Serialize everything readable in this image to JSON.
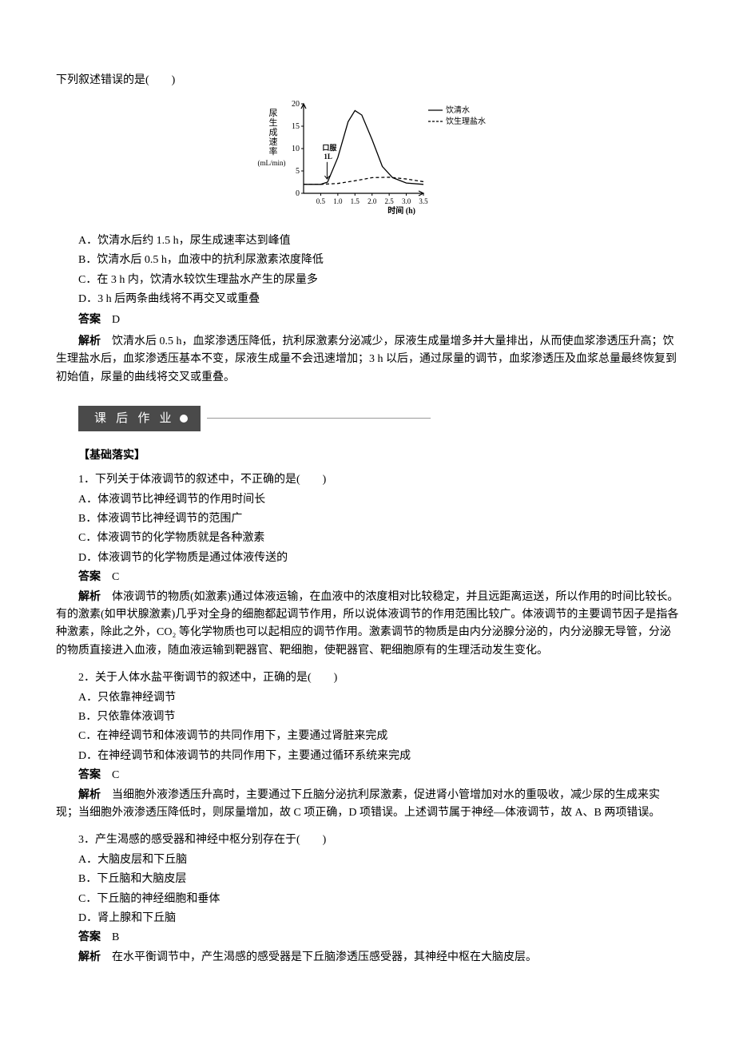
{
  "top": {
    "stem": "下列叙述错误的是(　　)",
    "options": {
      "A": "A．饮清水后约 1.5 h，尿生成速率达到峰值",
      "B": "B．饮清水后 0.5 h，血液中的抗利尿激素浓度降低",
      "C": "C．在 3 h 内，饮清水较饮生理盐水产生的尿量多",
      "D": "D．3 h 后两条曲线将不再交叉或重叠"
    },
    "answer_label": "答案",
    "answer_value": "　D",
    "analysis_label": "解析",
    "analysis_text": "　饮清水后 0.5 h，血浆渗透压降低，抗利尿激素分泌减少，尿液生成量增多并大量排出，从而使血浆渗透压升高；饮生理盐水后，血浆渗透压基本不变，尿液生成量不会迅速增加；3 h 以后，通过尿量的调节，血浆渗透压及血浆总量最终恢复到初始值，尿量的曲线将交叉或重叠。"
  },
  "chart": {
    "type": "line",
    "y_label_lines": [
      "尿",
      "生",
      "成",
      "速",
      "率"
    ],
    "y_unit": "(mL/min)",
    "x_label": "时间 (h)",
    "y_ticks": [
      "0",
      "5",
      "10",
      "15",
      "20"
    ],
    "x_ticks": [
      "0.5",
      "1.0",
      "1.5",
      "2.0",
      "2.5",
      "3.0",
      "3.5"
    ],
    "legend": {
      "water": "饮清水",
      "saline": "饮生理盐水"
    },
    "annot_l1": "口服",
    "annot_l2": "1L",
    "series": {
      "water": {
        "color": "#000000",
        "dash": "none",
        "points": [
          [
            0,
            2.0
          ],
          [
            0.5,
            2.0
          ],
          [
            0.7,
            2.5
          ],
          [
            1.0,
            8.0
          ],
          [
            1.3,
            16.0
          ],
          [
            1.5,
            18.5
          ],
          [
            1.7,
            17.5
          ],
          [
            2.0,
            12.0
          ],
          [
            2.3,
            6.0
          ],
          [
            2.6,
            3.5
          ],
          [
            3.0,
            2.3
          ],
          [
            3.5,
            2.0
          ]
        ]
      },
      "saline": {
        "color": "#000000",
        "dash": "4,3",
        "points": [
          [
            0,
            2.0
          ],
          [
            0.5,
            2.0
          ],
          [
            1.0,
            2.2
          ],
          [
            1.5,
            2.8
          ],
          [
            2.0,
            3.5
          ],
          [
            2.5,
            3.6
          ],
          [
            3.0,
            3.2
          ],
          [
            3.5,
            2.6
          ]
        ]
      }
    },
    "xlim": [
      0,
      3.5
    ],
    "ylim": [
      0,
      20
    ],
    "axis_color": "#000000",
    "background": "#ffffff"
  },
  "section": {
    "badge": "课 后 作 业"
  },
  "basics": {
    "header": "【基础落实】",
    "q1": {
      "stem": "1．下列关于体液调节的叙述中，不正确的是(　　)",
      "A": "A．体液调节比神经调节的作用时间长",
      "B": "B．体液调节比神经调节的范围广",
      "C": "C．体液调节的化学物质就是各种激素",
      "D": "D．体液调节的化学物质是通过体液传送的",
      "answer_label": "答案",
      "answer_value": "　C",
      "analysis_label": "解析",
      "analysis_text": "　体液调节的物质(如激素)通过体液运输，在血液中的浓度相对比较稳定，并且远距离运送，所以作用的时间比较长。有的激素(如甲状腺激素)几乎对全身的细胞都起调节作用，所以说体液调节的作用范围比较广。体液调节的主要调节因子是指各种激素，除此之外，CO₂ 等化学物质也可以起相应的调节作用。激素调节的物质是由内分泌腺分泌的，内分泌腺无导管，分泌的物质直接进入血液，随血液运输到靶器官、靶细胞，使靶器官、靶细胞原有的生理活动发生变化。"
    },
    "q2": {
      "stem": "2．关于人体水盐平衡调节的叙述中，正确的是(　　)",
      "A": "A．只依靠神经调节",
      "B": "B．只依靠体液调节",
      "C": "C．在神经调节和体液调节的共同作用下，主要通过肾脏来完成",
      "D": "D．在神经调节和体液调节的共同作用下，主要通过循环系统来完成",
      "answer_label": "答案",
      "answer_value": "　C",
      "analysis_label": "解析",
      "analysis_text": "　当细胞外液渗透压升高时，主要通过下丘脑分泌抗利尿激素，促进肾小管增加对水的重吸收，减少尿的生成来实现；当细胞外液渗透压降低时，则尿量增加，故 C 项正确，D 项错误。上述调节属于神经—体液调节，故 A、B 两项错误。"
    },
    "q3": {
      "stem": "3．产生渴感的感受器和神经中枢分别存在于(　　)",
      "A": "A．大脑皮层和下丘脑",
      "B": "B．下丘脑和大脑皮层",
      "C": "C．下丘脑的神经细胞和垂体",
      "D": "D．肾上腺和下丘脑",
      "answer_label": "答案",
      "answer_value": "　B",
      "analysis_label": "解析",
      "analysis_text": "　在水平衡调节中，产生渴感的感受器是下丘脑渗透压感受器，其神经中枢在大脑皮层。"
    }
  }
}
